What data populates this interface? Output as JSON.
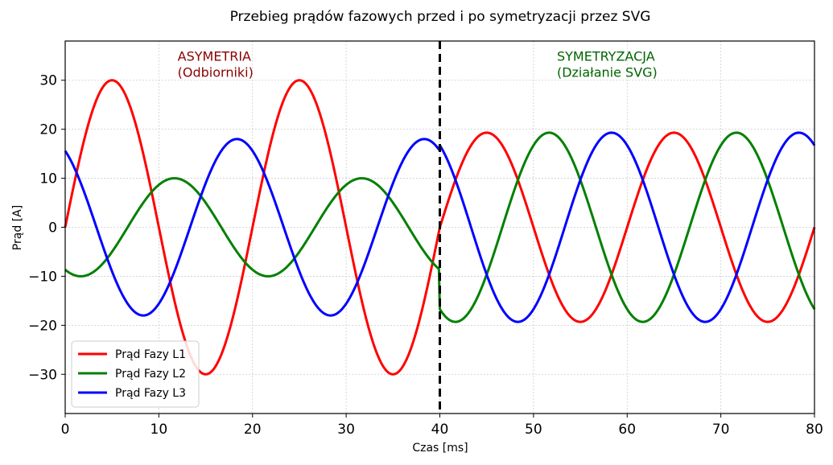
{
  "chart_data": {
    "type": "line",
    "title": "Przebieg prądów fazowych przed i po symetryzacji przez SVG",
    "xlabel": "Czas [ms]",
    "ylabel": "Prąd [A]",
    "xlim": [
      0,
      80
    ],
    "ylim": [
      -38,
      38
    ],
    "xticks": [
      0,
      10,
      20,
      30,
      40,
      50,
      60,
      70,
      80
    ],
    "yticks": [
      -30,
      -20,
      -10,
      0,
      10,
      20,
      30
    ],
    "xtick_labels": [
      "0",
      "10",
      "20",
      "30",
      "40",
      "50",
      "60",
      "70",
      "80"
    ],
    "ytick_labels": [
      "−30",
      "−20",
      "−10",
      "0",
      "10",
      "20",
      "30"
    ],
    "grid": true,
    "legend_position": "lower-left",
    "frequency_hz": 50,
    "switch_time_ms": 40,
    "series": [
      {
        "name": "Prąd Fazy L1",
        "color": "#ff0000",
        "before": {
          "amplitude": 30,
          "phase_deg": 0
        },
        "after": {
          "amplitude": 19.3,
          "phase_deg": 0
        }
      },
      {
        "name": "Prąd Fazy L2",
        "color": "#008000",
        "before": {
          "amplitude": 10,
          "phase_deg": -120
        },
        "after": {
          "amplitude": 19.3,
          "phase_deg": -120
        }
      },
      {
        "name": "Prąd Fazy L3",
        "color": "#0000ff",
        "before": {
          "amplitude": 18,
          "phase_deg": 120
        },
        "after": {
          "amplitude": 19.3,
          "phase_deg": 120
        }
      }
    ],
    "annotations": [
      {
        "lines": [
          "ASYMETRIA",
          "(Odbiorniki)"
        ],
        "x": 12,
        "y": 33,
        "color": "#8b0000"
      },
      {
        "lines": [
          "SYMETRYZACJA",
          "(Działanie SVG)"
        ],
        "x": 52.5,
        "y": 33,
        "color": "#006400"
      }
    ],
    "vertical_line": {
      "x": 40,
      "color": "#000000",
      "style": "dashed"
    }
  }
}
